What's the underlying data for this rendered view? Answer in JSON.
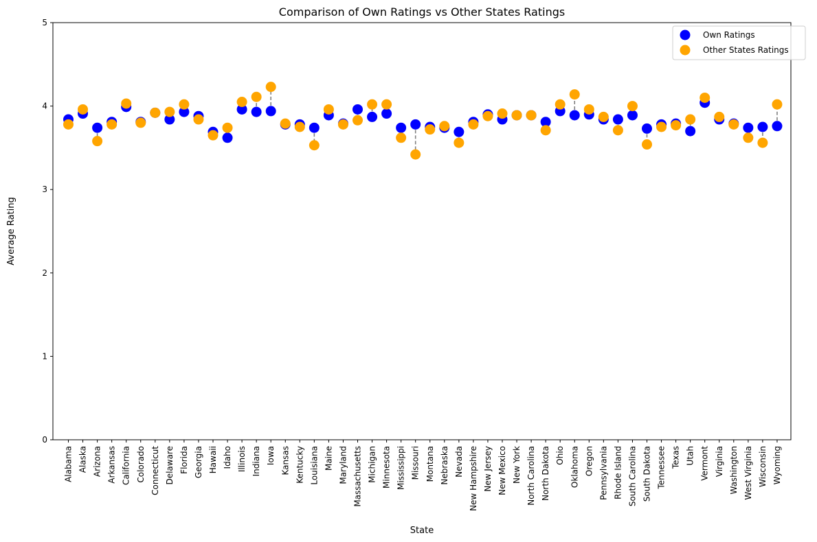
{
  "chart_data": {
    "type": "scatter",
    "title": "Comparison of Own Ratings vs Other States Ratings",
    "xlabel": "State",
    "ylabel": "Average Rating",
    "ylim": [
      0,
      5
    ],
    "yticks": [
      0,
      1,
      2,
      3,
      4,
      5
    ],
    "grid": false,
    "legend_position": "top-right",
    "connector_style": "dashed gray line between the two ratings of each state",
    "categories": [
      "Alabama",
      "Alaska",
      "Arizona",
      "Arkansas",
      "California",
      "Colorado",
      "Connecticut",
      "Delaware",
      "Florida",
      "Georgia",
      "Hawaii",
      "Idaho",
      "Illinois",
      "Indiana",
      "Iowa",
      "Kansas",
      "Kentucky",
      "Louisiana",
      "Maine",
      "Maryland",
      "Massachusetts",
      "Michigan",
      "Minnesota",
      "Mississippi",
      "Missouri",
      "Montana",
      "Nebraska",
      "Nevada",
      "New Hampshire",
      "New Jersey",
      "New Mexico",
      "New York",
      "North Carolina",
      "North Dakota",
      "Ohio",
      "Oklahoma",
      "Oregon",
      "Pennsylvania",
      "Rhode Island",
      "South Carolina",
      "South Dakota",
      "Tennessee",
      "Texas",
      "Utah",
      "Vermont",
      "Virginia",
      "Washington",
      "West Virginia",
      "Wisconsin",
      "Wyoming"
    ],
    "series": [
      {
        "name": "Own Ratings",
        "color": "#0000ff",
        "values": [
          3.84,
          3.91,
          3.74,
          3.81,
          3.99,
          3.81,
          3.92,
          3.84,
          3.93,
          3.88,
          3.69,
          3.62,
          3.96,
          3.93,
          3.94,
          3.78,
          3.78,
          3.74,
          3.89,
          3.79,
          3.96,
          3.87,
          3.91,
          3.74,
          3.78,
          3.75,
          3.74,
          3.69,
          3.81,
          3.9,
          3.84,
          3.89,
          3.89,
          3.81,
          3.94,
          3.89,
          3.9,
          3.84,
          3.84,
          3.89,
          3.73,
          3.78,
          3.79,
          3.7,
          4.04,
          3.84,
          3.79,
          3.74,
          3.75,
          3.76
        ]
      },
      {
        "name": "Other States Ratings",
        "color": "#ffa500",
        "values": [
          3.78,
          3.96,
          3.58,
          3.78,
          4.03,
          3.8,
          3.92,
          3.93,
          4.02,
          3.84,
          3.65,
          3.74,
          4.05,
          4.11,
          4.23,
          3.79,
          3.75,
          3.53,
          3.96,
          3.78,
          3.83,
          4.02,
          4.02,
          3.62,
          3.42,
          3.72,
          3.76,
          3.56,
          3.78,
          3.88,
          3.91,
          3.89,
          3.89,
          3.71,
          4.02,
          4.14,
          3.96,
          3.87,
          3.71,
          4.0,
          3.54,
          3.75,
          3.77,
          3.84,
          4.1,
          3.87,
          3.78,
          3.62,
          3.56,
          4.02
        ]
      }
    ]
  }
}
